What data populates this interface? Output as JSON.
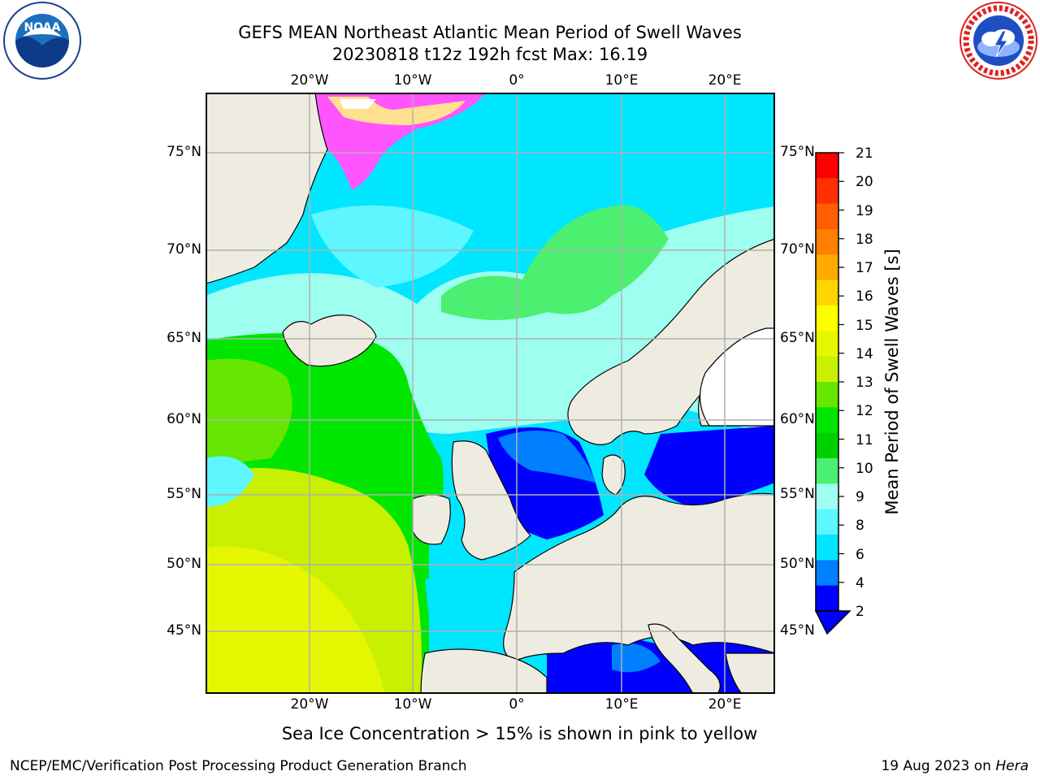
{
  "header": {
    "title_line1": "GEFS MEAN Northeast Atlantic Mean Period of Swell Waves",
    "title_line2": "20230818 t12z 192h fcst   Max: 16.19"
  },
  "logos": {
    "left": "noaa-logo",
    "left_text": "NOAA",
    "left_ring_text": "NATIONAL OCEANIC AND ATMOSPHERIC ADMINISTRATION · U.S. DEPARTMENT OF COMMERCE",
    "right": "nws-logo",
    "right_ring_text": "NATIONAL WEATHER SERVICE"
  },
  "map": {
    "lon_labels": [
      "20°W",
      "10°W",
      "0°",
      "10°E",
      "20°E"
    ],
    "lat_labels": [
      "75°N",
      "70°N",
      "65°N",
      "60°N",
      "55°N",
      "50°N",
      "45°N"
    ],
    "colors": {
      "land": "#eeece0",
      "coast": "#000000",
      "grid": "#b0b0b0"
    }
  },
  "colorbar": {
    "label": "Mean Period of Swell Waves [s]",
    "ticks": [
      "21",
      "20",
      "19",
      "18",
      "17",
      "16",
      "15",
      "14",
      "13",
      "12",
      "11",
      "10",
      "9",
      "8",
      "7",
      "6",
      "5",
      "4",
      "3",
      "2"
    ],
    "tick_labels": [
      "21",
      "20",
      "19",
      "18",
      "17",
      "16",
      "15",
      "14",
      "13",
      "12",
      "11",
      "10",
      "9",
      "8",
      "6",
      "4",
      "2"
    ],
    "colors": [
      "#ff0000",
      "#ff2f00",
      "#ff5f00",
      "#ff7f00",
      "#ffaa00",
      "#ffd500",
      "#ffff00",
      "#e5f700",
      "#c8f000",
      "#66e600",
      "#00e600",
      "#00d000",
      "#4cf070",
      "#9efff0",
      "#5ef6ff",
      "#00e6ff",
      "#007fff",
      "#0000ff"
    ],
    "extend": "min"
  },
  "notes": {
    "sea_ice": "Sea Ice Concentration > 15% is shown in pink to yellow"
  },
  "footer": {
    "left": "NCEP/EMC/Verification Post Processing Product Generation Branch",
    "right_date": "19 Aug 2023 on ",
    "right_machine": "Hera"
  }
}
